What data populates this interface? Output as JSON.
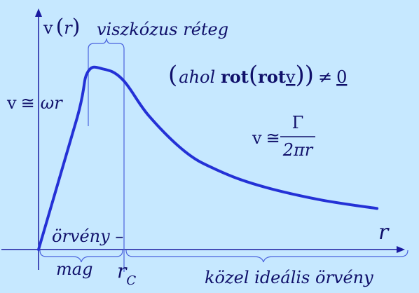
{
  "colors": {
    "background": "#c6e8ff",
    "axis": "#1a1aa0",
    "curve": "#2431d6",
    "guide": "#4a62dd",
    "text": "#10106a"
  },
  "labels": {
    "y_axis_v": "v",
    "y_axis_r": "r",
    "x_axis": "r",
    "viscous_layer": "viszkózus réteg",
    "left_formula_v": "v",
    "left_formula_approx": "≅",
    "left_formula_omega": "ω",
    "left_formula_r": "r",
    "rot_ahol": "ahol",
    "rot_rot": "rot",
    "rot_v": "v",
    "rot_neq": "≠",
    "rot_zero": "0",
    "right_formula_v": "v",
    "right_formula_approx": "≅",
    "right_formula_gamma": "Γ",
    "right_formula_den": "2πr",
    "vortex_core_1": "örvény –",
    "vortex_core_2": "mag",
    "critical_r": "r",
    "critical_sub": "C",
    "ideal_vortex": "közel ideális örvény"
  },
  "chart_data": {
    "type": "line",
    "description_free": true,
    "series": [
      {
        "values": [
          {
            "x": 0.0,
            "y": 0.0
          },
          {
            "x": 0.57,
            "y": 0.74
          },
          {
            "x": 0.72,
            "y": 0.99
          },
          {
            "x": 0.95,
            "y": 1.01
          },
          {
            "x": 1.24,
            "y": 0.95
          },
          {
            "x": 1.62,
            "y": 0.75
          },
          {
            "x": 2.15,
            "y": 0.55
          },
          {
            "x": 2.6,
            "y": 0.45
          },
          {
            "x": 3.23,
            "y": 0.36
          },
          {
            "x": 4.12,
            "y": 0.28
          },
          {
            "x": 4.98,
            "y": 0.23
          }
        ]
      }
    ],
    "xlim": [
      0,
      5.5
    ],
    "ylim": [
      0,
      1.3
    ]
  }
}
